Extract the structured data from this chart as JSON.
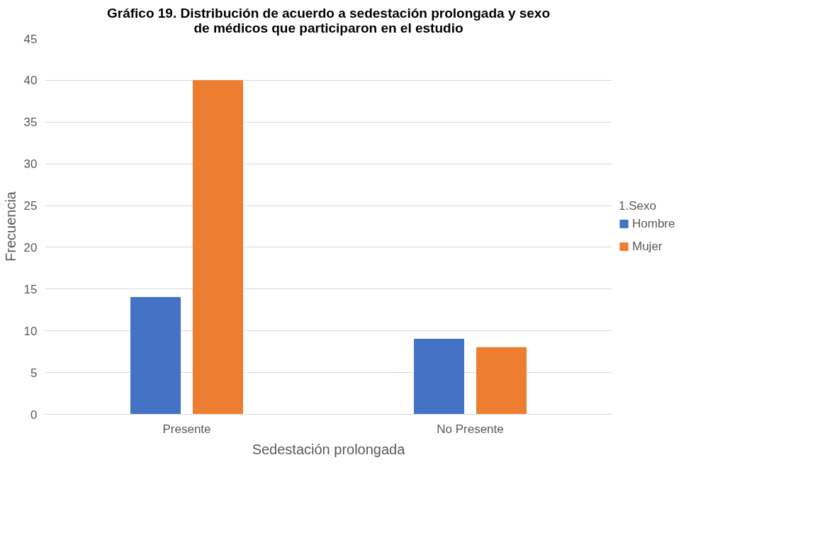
{
  "chart_data": {
    "type": "bar",
    "title": "Gráfico 19. Distribución de acuerdo a sedestación prolongada y sexo de médicos que participaron en el estudio",
    "xlabel": "Sedestación prolongada",
    "ylabel": "Frecuencia",
    "legend_title": "1.Sexo",
    "categories": [
      "Presente",
      "No Presente"
    ],
    "series": [
      {
        "name": "Hombre",
        "color": "#4472c4",
        "values": [
          14,
          9
        ]
      },
      {
        "name": "Mujer",
        "color": "#ed7d31",
        "values": [
          40,
          8
        ]
      }
    ],
    "ylim": [
      0,
      45
    ],
    "yticks": [
      0,
      5,
      10,
      15,
      20,
      25,
      30,
      35,
      40,
      45
    ],
    "grid": "y",
    "legend": "right"
  }
}
